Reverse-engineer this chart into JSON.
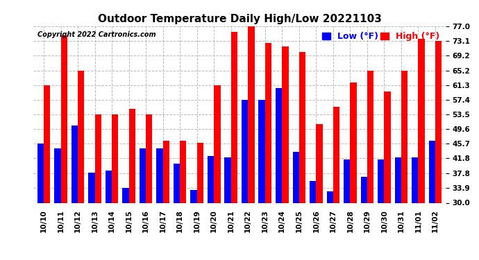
{
  "title": "Outdoor Temperature Daily High/Low 20221103",
  "copyright": "Copyright 2022 Cartronics.com",
  "legend_low": "Low",
  "legend_high": "High",
  "legend_unit": "(°F)",
  "dates": [
    "10/10",
    "10/11",
    "10/12",
    "10/13",
    "10/14",
    "10/15",
    "10/16",
    "10/17",
    "10/18",
    "10/19",
    "10/20",
    "10/21",
    "10/22",
    "10/23",
    "10/24",
    "10/25",
    "10/26",
    "10/27",
    "10/28",
    "10/29",
    "10/30",
    "10/31",
    "11/01",
    "11/02"
  ],
  "highs": [
    61.3,
    74.5,
    65.2,
    53.5,
    53.5,
    55.0,
    53.5,
    46.5,
    46.5,
    46.0,
    61.3,
    75.5,
    77.0,
    72.5,
    71.5,
    70.0,
    51.0,
    55.5,
    62.0,
    65.2,
    59.5,
    65.2,
    73.5,
    73.1
  ],
  "lows": [
    45.7,
    44.5,
    50.5,
    38.0,
    38.5,
    33.9,
    44.5,
    44.5,
    40.5,
    33.5,
    42.5,
    42.0,
    57.4,
    57.4,
    60.5,
    43.5,
    35.8,
    33.0,
    41.5,
    37.0,
    41.5,
    42.0,
    42.0,
    46.5
  ],
  "ymin": 30.0,
  "ymax": 77.0,
  "yticks": [
    30.0,
    33.9,
    37.8,
    41.8,
    45.7,
    49.6,
    53.5,
    57.4,
    61.3,
    65.2,
    69.2,
    73.1,
    77.0
  ],
  "bar_width": 0.38,
  "high_color": "#ff0000",
  "low_color": "#0000ff",
  "bg_color": "#ffffff",
  "grid_color": "#bbbbbb",
  "title_fontsize": 11,
  "tick_fontsize": 7.5,
  "legend_fontsize": 9,
  "copyright_fontsize": 7
}
